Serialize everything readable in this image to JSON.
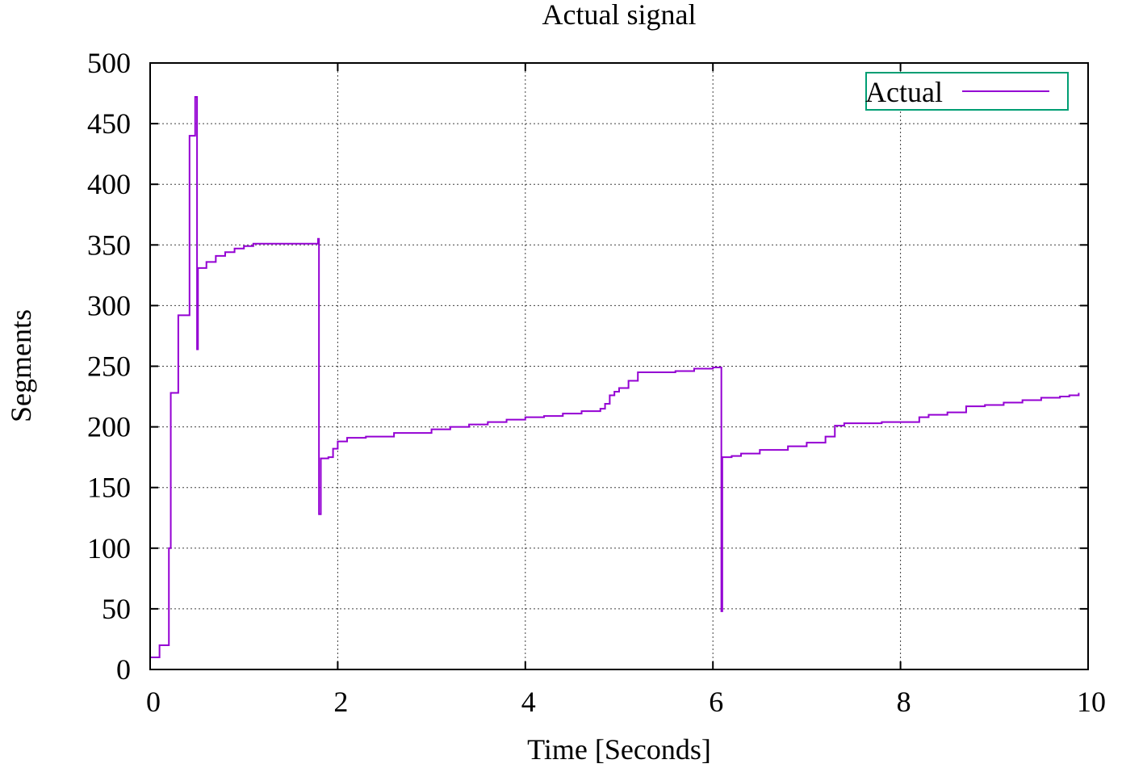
{
  "colors": {
    "series": "#9400d3",
    "legend_border": "#009e73",
    "axis": "#000000"
  },
  "chart_data": {
    "type": "line",
    "title": "Actual signal",
    "xlabel": "Time [Seconds]",
    "ylabel": "Segments",
    "xlim": [
      0,
      10
    ],
    "ylim": [
      0,
      500
    ],
    "x_ticks": [
      0,
      2,
      4,
      6,
      8,
      10
    ],
    "y_ticks": [
      0,
      50,
      100,
      150,
      200,
      250,
      300,
      350,
      400,
      450,
      500
    ],
    "grid": true,
    "legend_position": "top-right",
    "series": [
      {
        "name": "Actual",
        "step": true,
        "x": [
          0,
          0.1,
          0.2,
          0.22,
          0.27,
          0.3,
          0.4,
          0.42,
          0.48,
          0.5,
          0.51,
          0.52,
          0.6,
          0.7,
          0.8,
          0.9,
          1.0,
          1.1,
          1.3,
          1.5,
          1.78,
          1.79,
          1.8,
          1.82,
          1.9,
          1.95,
          2.0,
          2.1,
          2.3,
          2.6,
          3.0,
          3.2,
          3.4,
          3.6,
          3.8,
          4.0,
          4.2,
          4.4,
          4.6,
          4.8,
          4.85,
          4.9,
          4.95,
          5.0,
          5.1,
          5.2,
          5.4,
          5.6,
          5.8,
          6.0,
          6.08,
          6.09,
          6.1,
          6.2,
          6.3,
          6.5,
          6.8,
          7.0,
          7.2,
          7.3,
          7.4,
          7.6,
          7.8,
          8.0,
          8.2,
          8.3,
          8.5,
          8.7,
          8.9,
          9.1,
          9.3,
          9.5,
          9.7,
          9.8,
          9.9
        ],
        "values": [
          10,
          20,
          100,
          228,
          228,
          292,
          292,
          440,
          472,
          264,
          331,
          331,
          336,
          341,
          344,
          347,
          349,
          351,
          351,
          351,
          351,
          355,
          128,
          174,
          175,
          182,
          188,
          191,
          192,
          195,
          198,
          200,
          202,
          204,
          206,
          208,
          209,
          211,
          213,
          215,
          219,
          226,
          229,
          232,
          238,
          245,
          245,
          246,
          248,
          249,
          249,
          48,
          175,
          176,
          178,
          181,
          184,
          187,
          192,
          201,
          203,
          203,
          204,
          204,
          208,
          210,
          212,
          217,
          218,
          220,
          222,
          224,
          225,
          226,
          228
        ]
      }
    ]
  }
}
